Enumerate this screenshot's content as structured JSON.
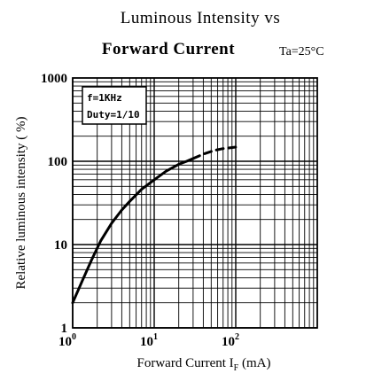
{
  "chart_data": {
    "type": "line",
    "title_line1": "Luminous Intensity vs",
    "title_line2": "Forward Current",
    "condition": "Ta=25°C",
    "xlabel": "Forward Current  I",
    "xlabel_sub": "F",
    "xlabel_unit": " (mA)",
    "ylabel": "Relative luminous intensity ( %)",
    "xscale": "log",
    "yscale": "log",
    "xlim": [
      1,
      1000
    ],
    "ylim": [
      1,
      1000
    ],
    "x_ticks": [
      {
        "value": 1,
        "base": "10",
        "exp": "0"
      },
      {
        "value": 10,
        "base": "10",
        "exp": "1"
      },
      {
        "value": 100,
        "base": "10",
        "exp": "2"
      }
    ],
    "y_ticks": [
      {
        "value": 1,
        "label": "1"
      },
      {
        "value": 10,
        "label": "10"
      },
      {
        "value": 100,
        "label": "100"
      },
      {
        "value": 1000,
        "label": "1000"
      }
    ],
    "grid": true,
    "annotation": [
      "f=1KHz",
      "Duty=1/10"
    ],
    "series": [
      {
        "style": "solid",
        "x": [
          1,
          1.3,
          1.7,
          2.2,
          3,
          4,
          5,
          7,
          10,
          14,
          20,
          25,
          30
        ],
        "y": [
          2,
          3.6,
          6.5,
          11,
          18,
          26,
          33,
          46,
          60,
          76,
          92,
          100,
          108
        ]
      },
      {
        "style": "dashed",
        "x": [
          30,
          40,
          55,
          70,
          100
        ],
        "y": [
          108,
          122,
          135,
          142,
          148
        ]
      }
    ]
  }
}
